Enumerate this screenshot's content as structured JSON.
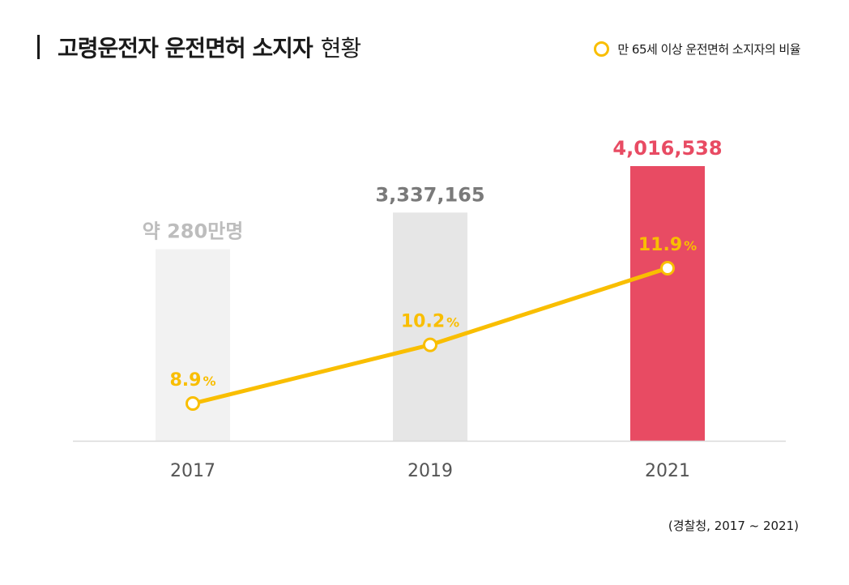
{
  "header": {
    "title_main": "고령운전자 운전면허 소지자",
    "title_sub": "현황"
  },
  "legend": {
    "label": "만 65세 이상 운전면허 소지자의 비율"
  },
  "source": "(경찰청, 2017 ~ 2021)",
  "colors": {
    "bar_2017": "#f2f2f2",
    "bar_2019": "#e6e6e6",
    "bar_2021": "#e84b63",
    "label_2017": "#bdbdbd",
    "label_2019": "#7a7a7a",
    "label_2021": "#e84b63",
    "line": "#f9be00",
    "axis_text": "#555555"
  },
  "chart_data": {
    "type": "bar",
    "categories": [
      "2017",
      "2019",
      "2021"
    ],
    "series": [
      {
        "values": [
          2800000,
          3337165,
          4016538
        ],
        "labels": [
          "약 280만명",
          "3,337,165",
          "4,016,538"
        ]
      },
      {
        "name": "만 65세 이상 운전면허 소지자의 비율",
        "type": "line",
        "values": [
          8.9,
          10.2,
          11.9
        ],
        "labels": [
          "8.9",
          "10.2",
          "11.9"
        ],
        "unit": "%"
      }
    ],
    "title": "고령운전자 운전면허 소지자 현황",
    "xlabel": "",
    "ylabel": "",
    "grid": false,
    "legend_position": "top-right"
  }
}
